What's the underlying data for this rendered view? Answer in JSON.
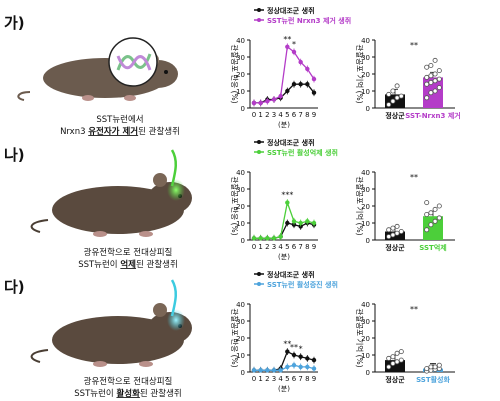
{
  "chart_data": [
    {
      "type": "line",
      "panel": "가)",
      "ylabel": "관찰공포 반응 (%)",
      "xlabel": "(분)",
      "ylim": [
        0,
        40
      ],
      "yticks": [
        0,
        10,
        20,
        30,
        40
      ],
      "x": [
        0,
        1,
        2,
        3,
        4,
        5,
        6,
        7,
        8,
        9
      ],
      "grid": false,
      "legend_position": "top",
      "series": [
        {
          "name": "정상대조군 생쥐",
          "color": "#111111",
          "values": [
            3,
            3,
            5,
            5,
            6,
            10,
            14,
            14,
            14,
            9
          ]
        },
        {
          "name": "SST뉴런 Nrxn3 제거 생쥐",
          "color": "#b43cc8",
          "values": [
            3,
            3,
            4,
            5,
            7,
            36,
            33,
            27,
            23,
            17
          ]
        }
      ],
      "annotations": [
        "**",
        "*"
      ]
    },
    {
      "type": "bar",
      "panel": "가)",
      "ylabel": "관찰공포 기억 (%)",
      "ylim": [
        0,
        40
      ],
      "yticks": [
        0,
        10,
        20,
        30,
        40
      ],
      "categories": [
        "정상군",
        "SST-Nrxn3 제거"
      ],
      "values": [
        8,
        18
      ],
      "colors": [
        "#111111",
        "#b43cc8"
      ],
      "points": [
        [
          2,
          4,
          6,
          7,
          8,
          10,
          13
        ],
        [
          6,
          9,
          10,
          12,
          14,
          15,
          16,
          17,
          18,
          19,
          20,
          22,
          24,
          25,
          28
        ]
      ],
      "significance": "**"
    },
    {
      "type": "line",
      "panel": "나)",
      "ylabel": "관찰공포 반응 (%)",
      "xlabel": "(분)",
      "ylim": [
        0,
        40
      ],
      "yticks": [
        0,
        10,
        20,
        30,
        40
      ],
      "x": [
        0,
        1,
        2,
        3,
        4,
        5,
        6,
        7,
        8,
        9
      ],
      "grid": false,
      "legend_position": "top",
      "series": [
        {
          "name": "정상대조군 생쥐",
          "color": "#111111",
          "values": [
            1,
            1,
            1,
            1,
            2,
            10,
            9,
            8,
            10,
            9
          ]
        },
        {
          "name": "SST뉴런 활성억제 생쥐",
          "color": "#4ccf3a",
          "values": [
            1,
            1,
            1,
            1,
            2,
            22,
            11,
            10,
            11,
            10
          ]
        }
      ],
      "annotations": [
        "***"
      ]
    },
    {
      "type": "bar",
      "panel": "나)",
      "ylabel": "관찰공포 기억 (%)",
      "ylim": [
        0,
        40
      ],
      "yticks": [
        0,
        10,
        20,
        30,
        40
      ],
      "categories": [
        "정상군",
        "SST억제"
      ],
      "values": [
        5,
        14
      ],
      "colors": [
        "#111111",
        "#4ccf3a"
      ],
      "points": [
        [
          2,
          3,
          4,
          5,
          6,
          7,
          8
        ],
        [
          6,
          9,
          11,
          13,
          15,
          16,
          18,
          20,
          22
        ]
      ],
      "significance": "**"
    },
    {
      "type": "line",
      "panel": "다)",
      "ylabel": "관찰공포 반응 (%)",
      "xlabel": "(분)",
      "ylim": [
        0,
        40
      ],
      "yticks": [
        0,
        10,
        20,
        30,
        40
      ],
      "x": [
        0,
        1,
        2,
        3,
        4,
        5,
        6,
        7,
        8,
        9
      ],
      "grid": false,
      "legend_position": "top",
      "series": [
        {
          "name": "정상대조군 생쥐",
          "color": "#111111",
          "values": [
            1,
            1,
            1,
            1,
            2,
            12,
            10,
            9,
            8,
            7
          ]
        },
        {
          "name": "SST뉴런 활성증진 생쥐",
          "color": "#4da3dc",
          "values": [
            1,
            1,
            1,
            1,
            1,
            3,
            4,
            3,
            3,
            2
          ]
        }
      ],
      "annotations": [
        "**",
        "**",
        "*"
      ]
    },
    {
      "type": "bar",
      "panel": "다)",
      "ylabel": "관찰공포 기억 (%)",
      "ylim": [
        0,
        40
      ],
      "yticks": [
        0,
        10,
        20,
        30,
        40
      ],
      "categories": [
        "정상군",
        "SST활성화"
      ],
      "values": [
        7,
        2
      ],
      "colors": [
        "#111111",
        "#4da3dc"
      ],
      "points": [
        [
          3,
          5,
          6,
          7,
          8,
          9,
          11,
          12
        ],
        [
          0.5,
          1,
          1.5,
          2,
          2,
          3,
          3,
          4
        ]
      ],
      "significance": "**"
    }
  ],
  "panels": [
    {
      "letter": "가)",
      "caption_line1": "SST뉴런에서",
      "caption_line2_pre": "Nrxn3 ",
      "caption_line2_em": "유전자가 제거",
      "caption_line2_post": "된 관찰생쥐"
    },
    {
      "letter": "나)",
      "caption_line1": "광유전학으로 전대상피질",
      "caption_line2_pre": "SST뉴런이 ",
      "caption_line2_em": "억제",
      "caption_line2_post": "된 관찰생쥐"
    },
    {
      "letter": "다)",
      "caption_line1": "광유전학으로 전대상피질",
      "caption_line2_pre": "SST뉴런이 ",
      "caption_line2_em": "활성화",
      "caption_line2_post": "된 관찰생쥐"
    }
  ],
  "illustration": {
    "mouse_body_color": "#5a4a3e",
    "dna_callout_color": "#7a6a88",
    "optic_fiber_colors": [
      "#4ccf3a",
      "#3ccbe0"
    ]
  }
}
